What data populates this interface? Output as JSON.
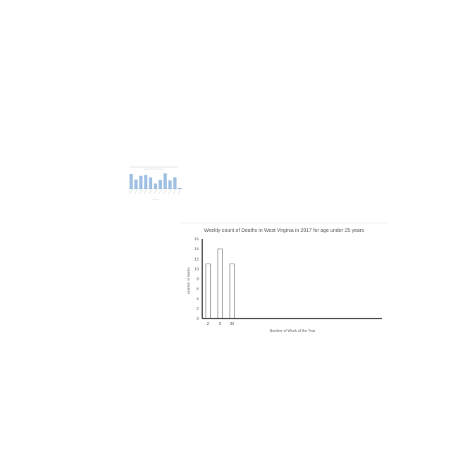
{
  "chart_data": [
    {
      "type": "bar",
      "title": "Weekly count of Deaths in West Virginia in 2017 for age under 25 years",
      "xlabel": "Number of Week of the Year",
      "ylabel": "number of deaths",
      "categories": [
        "2",
        "9",
        "36"
      ],
      "values": [
        11,
        14,
        11
      ],
      "ylim": [
        0,
        16
      ],
      "yticks": [
        0,
        2,
        4,
        6,
        8,
        10,
        12,
        14,
        16
      ],
      "grid": false,
      "legend": "none",
      "bar_fill": "#ffffff",
      "bar_stroke": "#888888",
      "axis_color": "#111111"
    },
    {
      "type": "bar",
      "values": [
        8,
        5,
        7,
        7.5,
        6.2,
        2.8,
        4.8,
        8.3,
        4.5,
        6.2,
        0.3
      ],
      "ylim": [
        0,
        10
      ],
      "bar_fill": "#9dbfe2",
      "bar_stroke": "#7da4cf"
    }
  ]
}
